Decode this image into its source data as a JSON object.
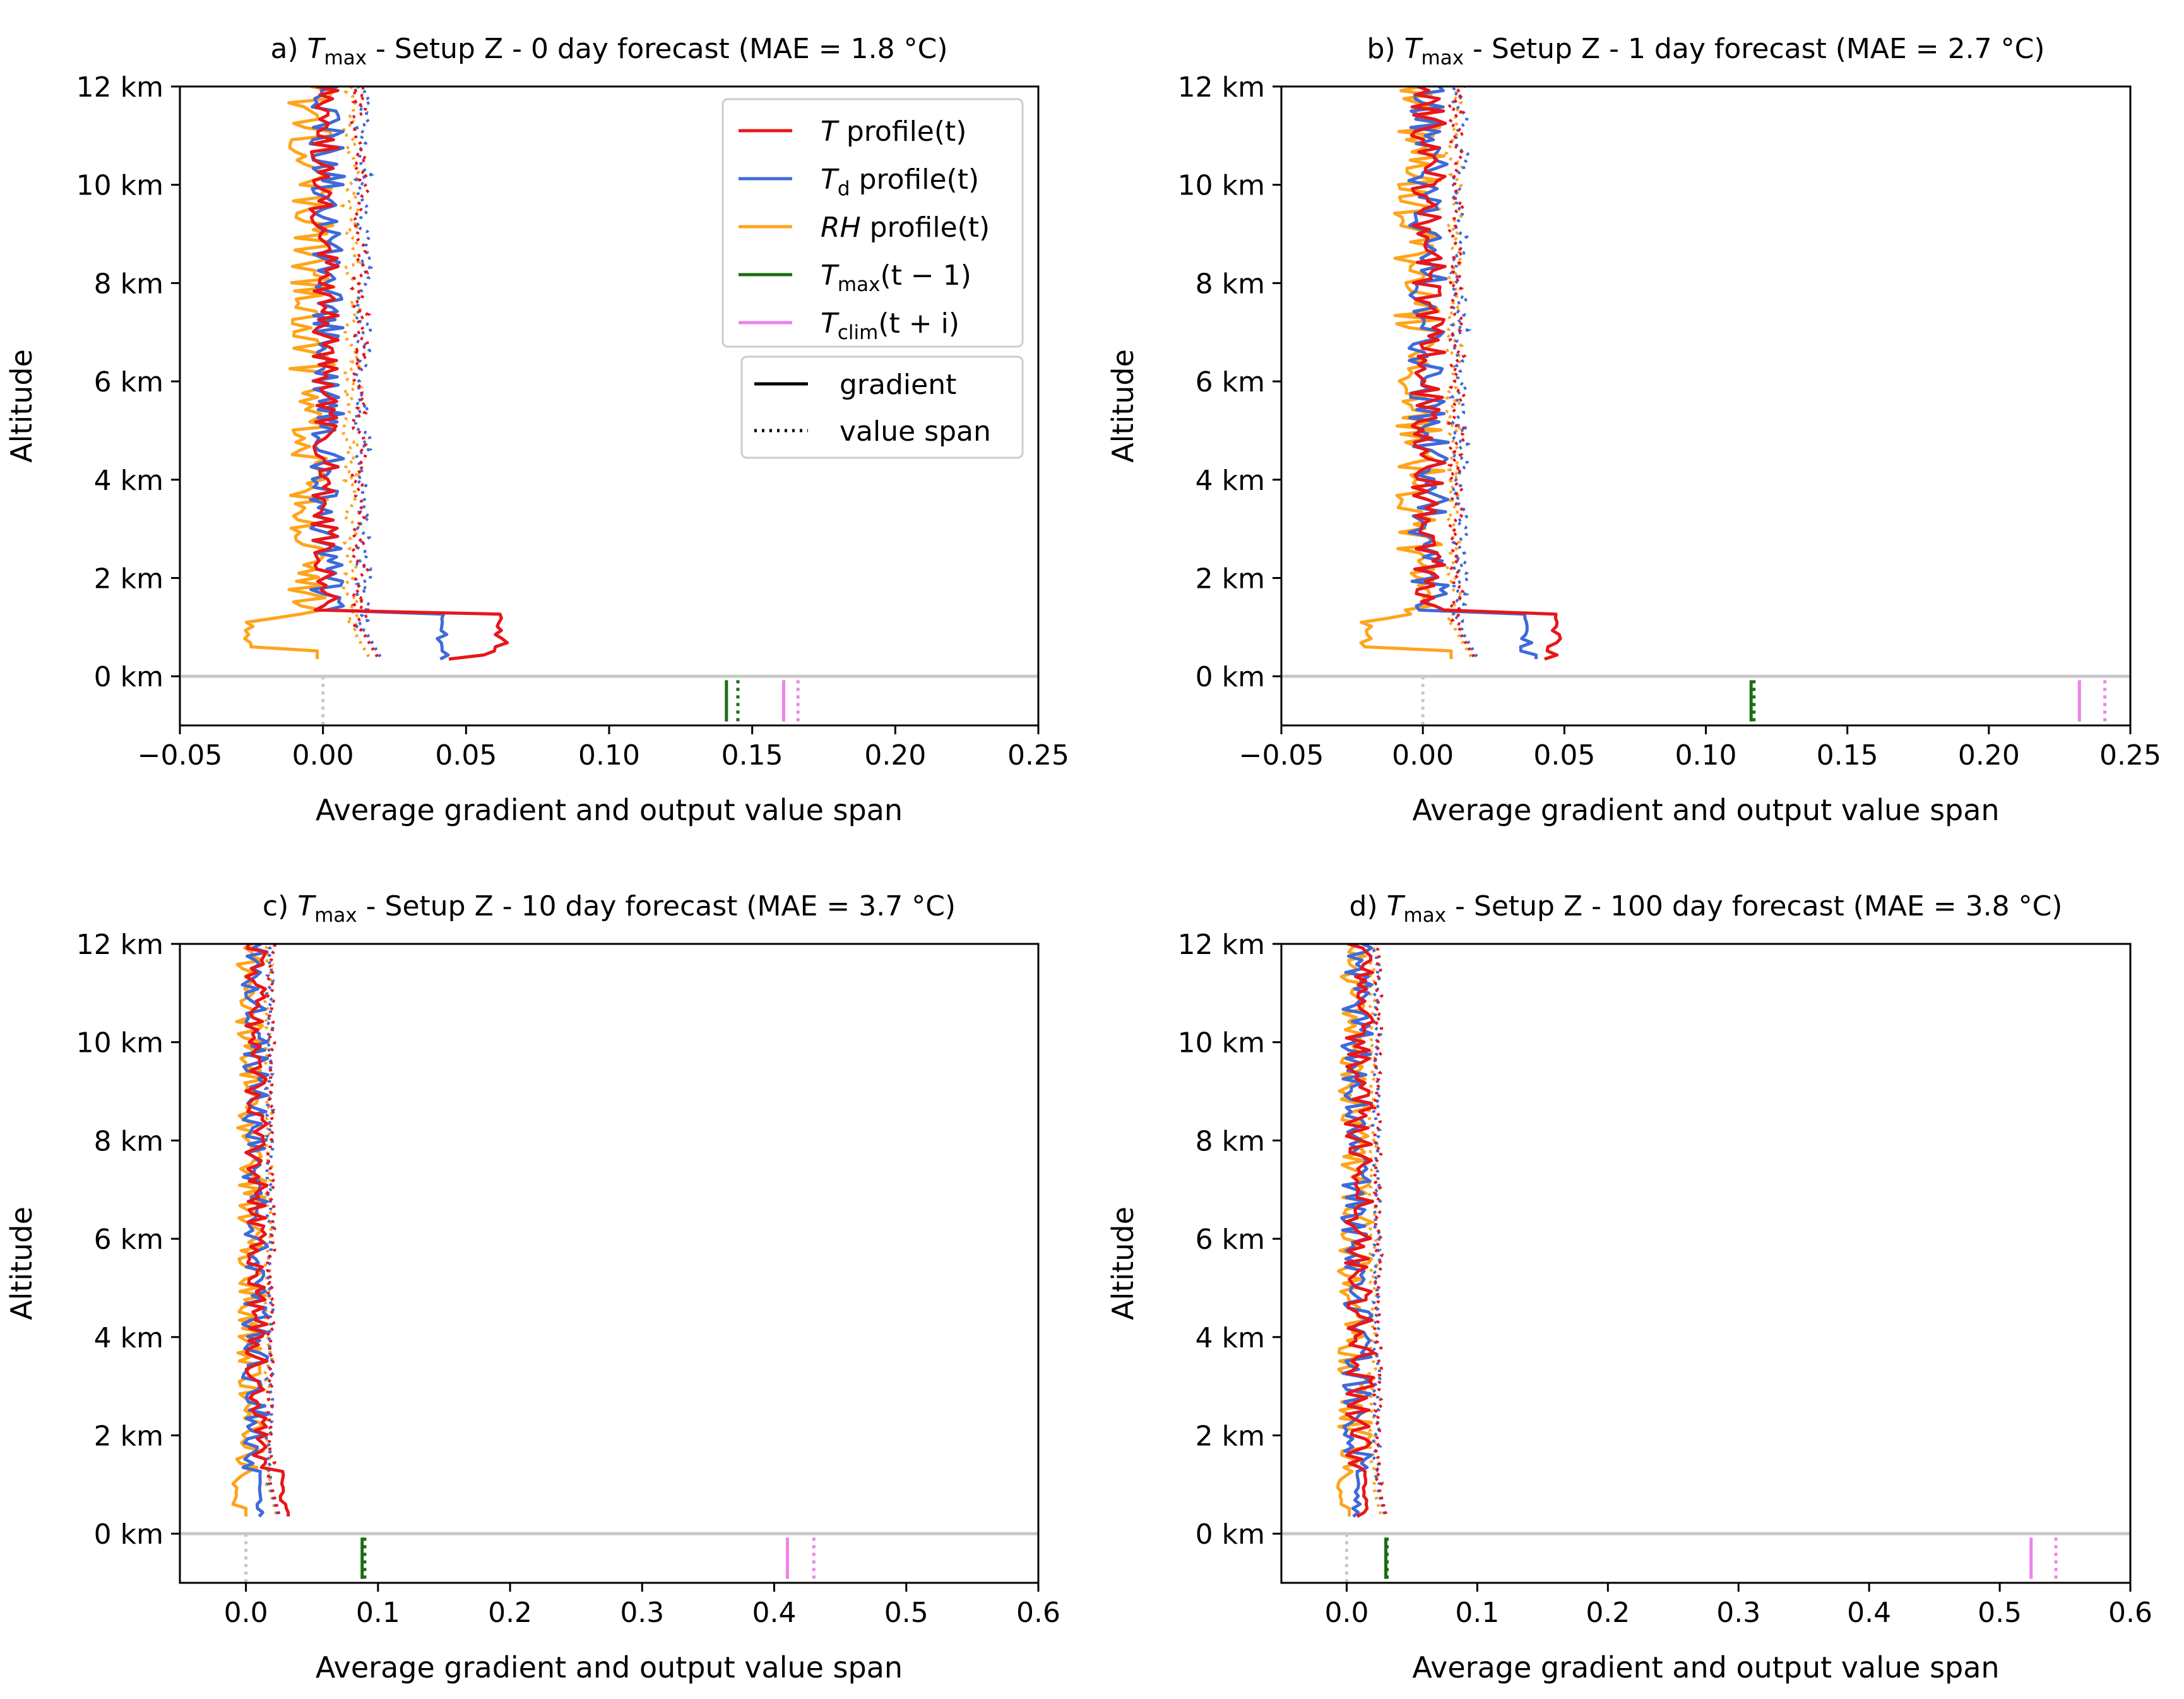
{
  "figure": {
    "xlabel": "Average gradient and output value span",
    "ylabel": "Altitude",
    "colors": {
      "T": "#e8161a",
      "Td": "#3f6ad8",
      "RH": "#ffa41b",
      "tmax_prev": "#1b6e12",
      "tclim": "#ee82ee",
      "zero_line": "#c8c8c8"
    },
    "legend": {
      "series": [
        {
          "key": "T",
          "label_prefix": "T",
          "label_sub": "",
          "label_suffix": " profile(t)"
        },
        {
          "key": "Td",
          "label_prefix": "T",
          "label_sub": "d",
          "label_suffix": " profile(t)"
        },
        {
          "key": "RH",
          "label_prefix": "RH",
          "label_sub": "",
          "label_suffix": " profile(t)"
        },
        {
          "key": "tmax_prev",
          "label_prefix": "T",
          "label_sub": "max",
          "label_suffix": "(t − 1)"
        },
        {
          "key": "tclim",
          "label_prefix": "T",
          "label_sub": "clim",
          "label_suffix": "(t + i)"
        }
      ],
      "styles": [
        {
          "key": "solid",
          "label": "gradient"
        },
        {
          "key": "dotted",
          "label": "value span"
        }
      ]
    }
  },
  "chart_data": [
    {
      "type": "line",
      "panel": "a",
      "title": "a) T_max - Setup Z - 0 day forecast  (MAE = 1.8 °C)",
      "title_parts": {
        "prefix": "a) ",
        "var": "T",
        "sub": "max",
        "suffix": " - Setup Z - 0 day forecast  (MAE = 1.8 °C)"
      },
      "xlabel": "Average gradient and output value span",
      "ylabel": "Altitude",
      "xlim": [
        -0.05,
        0.25
      ],
      "xticks": [
        -0.05,
        0.0,
        0.05,
        0.1,
        0.15,
        0.2,
        0.25
      ],
      "xtick_labels": [
        "−0.05",
        "0.00",
        "0.05",
        "0.10",
        "0.15",
        "0.20",
        "0.25"
      ],
      "ylim": [
        -1,
        12
      ],
      "yticks": [
        0,
        2,
        4,
        6,
        8,
        10,
        12
      ],
      "ytick_labels": [
        "0 km",
        "2 km",
        "4 km",
        "6 km",
        "8 km",
        "10 km",
        "12 km"
      ],
      "legend_visible": true,
      "profiles": {
        "T": {
          "base_grad": 0.0005,
          "spread": 0.005,
          "surface_peak": 0.066,
          "surface_end": 0.044,
          "span_mean": 0.013
        },
        "Td": {
          "base_grad": 0.0015,
          "spread": 0.006,
          "surface_peak": 0.046,
          "surface_end": 0.041,
          "span_mean": 0.014
        },
        "RH": {
          "base_grad": -0.004,
          "spread": 0.008,
          "surface_dip": -0.026,
          "surface_end": -0.002,
          "span_mean": 0.01
        }
      },
      "scalar_markers": {
        "tmax_prev": {
          "gradient": 0.141,
          "span": 0.145
        },
        "tclim": {
          "gradient": 0.161,
          "span": 0.166
        }
      }
    },
    {
      "type": "line",
      "panel": "b",
      "title": "b) T_max - Setup Z - 1 day forecast  (MAE = 2.7 °C)",
      "title_parts": {
        "prefix": "b) ",
        "var": "T",
        "sub": "max",
        "suffix": " - Setup Z - 1 day forecast  (MAE = 2.7 °C)"
      },
      "xlabel": "Average gradient and output value span",
      "ylabel": "Altitude",
      "xlim": [
        -0.05,
        0.25
      ],
      "xticks": [
        -0.05,
        0.0,
        0.05,
        0.1,
        0.15,
        0.2,
        0.25
      ],
      "xtick_labels": [
        "−0.05",
        "0.00",
        "0.05",
        "0.10",
        "0.15",
        "0.20",
        "0.25"
      ],
      "ylim": [
        -1,
        12
      ],
      "yticks": [
        0,
        2,
        4,
        6,
        8,
        10,
        12
      ],
      "ytick_labels": [
        "0 km",
        "2 km",
        "4 km",
        "6 km",
        "8 km",
        "10 km",
        "12 km"
      ],
      "legend_visible": false,
      "profiles": {
        "T": {
          "base_grad": 0.002,
          "spread": 0.006,
          "surface_peak": 0.051,
          "surface_end": 0.043,
          "span_mean": 0.012
        },
        "Td": {
          "base_grad": 0.002,
          "spread": 0.007,
          "surface_peak": 0.04,
          "surface_end": 0.04,
          "span_mean": 0.013
        },
        "RH": {
          "base_grad": -0.001,
          "spread": 0.009,
          "surface_dip": -0.02,
          "surface_end": 0.01,
          "span_mean": 0.011
        }
      },
      "scalar_markers": {
        "tmax_prev": {
          "gradient": 0.116,
          "span": 0.117
        },
        "tclim": {
          "gradient": 0.232,
          "span": 0.241
        }
      }
    },
    {
      "type": "line",
      "panel": "c",
      "title": "c) T_max - Setup Z - 10 day forecast  (MAE = 3.7 °C)",
      "title_parts": {
        "prefix": "c) ",
        "var": "T",
        "sub": "max",
        "suffix": " - Setup Z - 10 day forecast  (MAE = 3.7 °C)"
      },
      "xlabel": "Average gradient and output value span",
      "ylabel": "Altitude",
      "xlim": [
        -0.05,
        0.6
      ],
      "xticks": [
        0.0,
        0.1,
        0.2,
        0.3,
        0.4,
        0.5,
        0.6
      ],
      "xtick_labels": [
        "0.0",
        "0.1",
        "0.2",
        "0.3",
        "0.4",
        "0.5",
        "0.6"
      ],
      "ylim": [
        -1,
        12
      ],
      "yticks": [
        0,
        2,
        4,
        6,
        8,
        10,
        12
      ],
      "ytick_labels": [
        "0 km",
        "2 km",
        "4 km",
        "6 km",
        "8 km",
        "10 km",
        "12 km"
      ],
      "legend_visible": false,
      "profiles": {
        "T": {
          "base_grad": 0.008,
          "spread": 0.008,
          "surface_peak": 0.032,
          "surface_end": 0.032,
          "span_mean": 0.019
        },
        "Td": {
          "base_grad": 0.007,
          "spread": 0.01,
          "surface_peak": 0.015,
          "surface_end": 0.01,
          "span_mean": 0.018
        },
        "RH": {
          "base_grad": 0.004,
          "spread": 0.011,
          "surface_dip": -0.008,
          "surface_end": 0.0,
          "span_mean": 0.017
        }
      },
      "scalar_markers": {
        "tmax_prev": {
          "gradient": 0.088,
          "span": 0.09
        },
        "tclim": {
          "gradient": 0.41,
          "span": 0.43
        }
      }
    },
    {
      "type": "line",
      "panel": "d",
      "title": "d) T_max - Setup Z - 100 day forecast  (MAE = 3.8 °C)",
      "title_parts": {
        "prefix": "d) ",
        "var": "T",
        "sub": "max",
        "suffix": " - Setup Z - 100 day forecast  (MAE = 3.8 °C)"
      },
      "xlabel": "Average gradient and output value span",
      "ylabel": "Altitude",
      "xlim": [
        -0.05,
        0.6
      ],
      "xticks": [
        0.0,
        0.1,
        0.2,
        0.3,
        0.4,
        0.5,
        0.6
      ],
      "xtick_labels": [
        "0.0",
        "0.1",
        "0.2",
        "0.3",
        "0.4",
        "0.5",
        "0.6"
      ],
      "ylim": [
        -1,
        12
      ],
      "yticks": [
        0,
        2,
        4,
        6,
        8,
        10,
        12
      ],
      "ytick_labels": [
        "0 km",
        "2 km",
        "4 km",
        "6 km",
        "8 km",
        "10 km",
        "12 km"
      ],
      "legend_visible": false,
      "profiles": {
        "T": {
          "base_grad": 0.01,
          "spread": 0.011,
          "surface_peak": 0.018,
          "surface_end": 0.008,
          "span_mean": 0.024
        },
        "Td": {
          "base_grad": 0.008,
          "spread": 0.012,
          "surface_peak": 0.012,
          "surface_end": 0.005,
          "span_mean": 0.023
        },
        "RH": {
          "base_grad": 0.006,
          "spread": 0.013,
          "surface_dip": -0.005,
          "surface_end": 0.002,
          "span_mean": 0.02
        }
      },
      "scalar_markers": {
        "tmax_prev": {
          "gradient": 0.03,
          "span": 0.031
        },
        "tclim": {
          "gradient": 0.524,
          "span": 0.543
        }
      }
    }
  ]
}
